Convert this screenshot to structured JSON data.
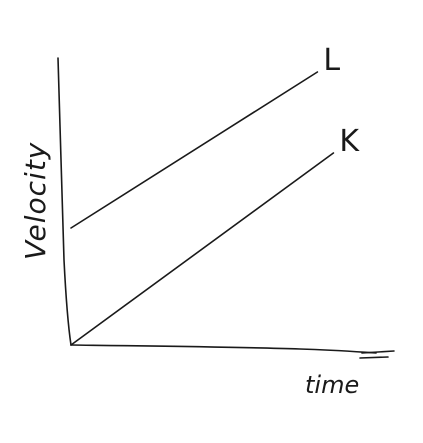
{
  "chart_data": {
    "type": "line",
    "title": "",
    "xlabel": "time",
    "ylabel": "Velocity",
    "xlim": [
      0,
      10
    ],
    "ylim": [
      0,
      10
    ],
    "grid": false,
    "legend": "none",
    "series": [
      {
        "name": "L",
        "x": [
          0,
          7.7
        ],
        "y": [
          3.9,
          9.1
        ]
      },
      {
        "name": "K",
        "x": [
          0,
          8.2
        ],
        "y": [
          0,
          6.4
        ]
      }
    ],
    "colors": {
      "ink": "#1a1a1a",
      "background": "#ffffff"
    }
  }
}
